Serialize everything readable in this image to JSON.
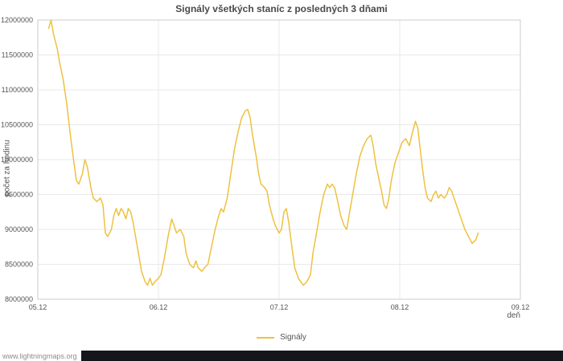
{
  "chart_data": {
    "type": "line",
    "title": "Signály všetkých staníc z posledných 3 dňami",
    "xlabel": "deň",
    "ylabel": "počet za hodinu",
    "xlim": [
      5,
      9
    ],
    "ylim": [
      8000000,
      12000000
    ],
    "grid": true,
    "x_ticks": [
      {
        "value": 5,
        "label": "05.12"
      },
      {
        "value": 6,
        "label": "06.12"
      },
      {
        "value": 7,
        "label": "07.12"
      },
      {
        "value": 8,
        "label": "08.12"
      },
      {
        "value": 9,
        "label": "09.12"
      }
    ],
    "y_ticks": [
      8000000,
      8500000,
      9000000,
      9500000,
      10000000,
      10500000,
      11000000,
      11500000,
      12000000
    ],
    "legend": [
      {
        "label": "Signály",
        "color": "#edc240"
      }
    ],
    "series": [
      {
        "name": "Signály",
        "color": "#edc240",
        "points": [
          [
            5.09,
            11880000
          ],
          [
            5.11,
            12000000
          ],
          [
            5.13,
            11800000
          ],
          [
            5.16,
            11600000
          ],
          [
            5.18,
            11400000
          ],
          [
            5.21,
            11150000
          ],
          [
            5.24,
            10800000
          ],
          [
            5.27,
            10350000
          ],
          [
            5.3,
            9950000
          ],
          [
            5.32,
            9700000
          ],
          [
            5.34,
            9650000
          ],
          [
            5.37,
            9800000
          ],
          [
            5.39,
            10000000
          ],
          [
            5.41,
            9900000
          ],
          [
            5.44,
            9600000
          ],
          [
            5.46,
            9450000
          ],
          [
            5.49,
            9400000
          ],
          [
            5.52,
            9450000
          ],
          [
            5.54,
            9350000
          ],
          [
            5.56,
            8950000
          ],
          [
            5.58,
            8900000
          ],
          [
            5.61,
            9000000
          ],
          [
            5.63,
            9200000
          ],
          [
            5.65,
            9300000
          ],
          [
            5.67,
            9200000
          ],
          [
            5.69,
            9300000
          ],
          [
            5.71,
            9250000
          ],
          [
            5.73,
            9150000
          ],
          [
            5.75,
            9300000
          ],
          [
            5.77,
            9250000
          ],
          [
            5.79,
            9100000
          ],
          [
            5.81,
            8900000
          ],
          [
            5.84,
            8600000
          ],
          [
            5.86,
            8400000
          ],
          [
            5.89,
            8250000
          ],
          [
            5.91,
            8200000
          ],
          [
            5.93,
            8300000
          ],
          [
            5.95,
            8200000
          ],
          [
            5.97,
            8250000
          ],
          [
            6.0,
            8300000
          ],
          [
            6.02,
            8350000
          ],
          [
            6.05,
            8600000
          ],
          [
            6.08,
            8900000
          ],
          [
            6.11,
            9150000
          ],
          [
            6.13,
            9050000
          ],
          [
            6.15,
            8950000
          ],
          [
            6.18,
            9000000
          ],
          [
            6.21,
            8900000
          ],
          [
            6.23,
            8650000
          ],
          [
            6.26,
            8500000
          ],
          [
            6.29,
            8450000
          ],
          [
            6.31,
            8550000
          ],
          [
            6.33,
            8450000
          ],
          [
            6.36,
            8400000
          ],
          [
            6.38,
            8450000
          ],
          [
            6.41,
            8500000
          ],
          [
            6.44,
            8750000
          ],
          [
            6.47,
            9000000
          ],
          [
            6.5,
            9200000
          ],
          [
            6.52,
            9300000
          ],
          [
            6.54,
            9250000
          ],
          [
            6.57,
            9450000
          ],
          [
            6.6,
            9800000
          ],
          [
            6.63,
            10150000
          ],
          [
            6.66,
            10400000
          ],
          [
            6.69,
            10600000
          ],
          [
            6.72,
            10700000
          ],
          [
            6.74,
            10720000
          ],
          [
            6.76,
            10600000
          ],
          [
            6.78,
            10350000
          ],
          [
            6.81,
            10050000
          ],
          [
            6.83,
            9800000
          ],
          [
            6.85,
            9650000
          ],
          [
            6.88,
            9600000
          ],
          [
            6.9,
            9550000
          ],
          [
            6.92,
            9350000
          ],
          [
            6.95,
            9150000
          ],
          [
            6.97,
            9050000
          ],
          [
            7.0,
            8950000
          ],
          [
            7.02,
            9000000
          ],
          [
            7.04,
            9250000
          ],
          [
            7.06,
            9300000
          ],
          [
            7.08,
            9100000
          ],
          [
            7.11,
            8700000
          ],
          [
            7.13,
            8450000
          ],
          [
            7.16,
            8300000
          ],
          [
            7.18,
            8250000
          ],
          [
            7.2,
            8200000
          ],
          [
            7.23,
            8250000
          ],
          [
            7.26,
            8350000
          ],
          [
            7.28,
            8650000
          ],
          [
            7.31,
            8950000
          ],
          [
            7.34,
            9250000
          ],
          [
            7.37,
            9500000
          ],
          [
            7.4,
            9650000
          ],
          [
            7.42,
            9600000
          ],
          [
            7.44,
            9650000
          ],
          [
            7.46,
            9600000
          ],
          [
            7.48,
            9450000
          ],
          [
            7.51,
            9200000
          ],
          [
            7.54,
            9050000
          ],
          [
            7.56,
            9000000
          ],
          [
            7.58,
            9200000
          ],
          [
            7.61,
            9500000
          ],
          [
            7.64,
            9800000
          ],
          [
            7.67,
            10050000
          ],
          [
            7.7,
            10200000
          ],
          [
            7.73,
            10300000
          ],
          [
            7.76,
            10350000
          ],
          [
            7.78,
            10200000
          ],
          [
            7.8,
            9950000
          ],
          [
            7.83,
            9700000
          ],
          [
            7.85,
            9550000
          ],
          [
            7.87,
            9350000
          ],
          [
            7.89,
            9300000
          ],
          [
            7.91,
            9450000
          ],
          [
            7.93,
            9700000
          ],
          [
            7.96,
            9950000
          ],
          [
            7.99,
            10100000
          ],
          [
            8.02,
            10250000
          ],
          [
            8.05,
            10300000
          ],
          [
            8.08,
            10200000
          ],
          [
            8.1,
            10350000
          ],
          [
            8.13,
            10550000
          ],
          [
            8.15,
            10450000
          ],
          [
            8.17,
            10150000
          ],
          [
            8.19,
            9850000
          ],
          [
            8.21,
            9600000
          ],
          [
            8.23,
            9450000
          ],
          [
            8.26,
            9400000
          ],
          [
            8.28,
            9500000
          ],
          [
            8.3,
            9550000
          ],
          [
            8.32,
            9450000
          ],
          [
            8.34,
            9500000
          ],
          [
            8.37,
            9450000
          ],
          [
            8.39,
            9500000
          ],
          [
            8.41,
            9600000
          ],
          [
            8.43,
            9550000
          ],
          [
            8.46,
            9400000
          ],
          [
            8.48,
            9300000
          ],
          [
            8.51,
            9150000
          ],
          [
            8.54,
            9000000
          ],
          [
            8.57,
            8900000
          ],
          [
            8.6,
            8800000
          ],
          [
            8.63,
            8850000
          ],
          [
            8.65,
            8950000
          ]
        ]
      }
    ],
    "colors": {
      "line": "#edc240",
      "gridline": "#e8e8e8",
      "plot_border": "#cccccc",
      "tick_text": "#545454"
    }
  },
  "footer": {
    "link_text": "www.lightningmaps.org",
    "bar_color": "#15151c"
  }
}
